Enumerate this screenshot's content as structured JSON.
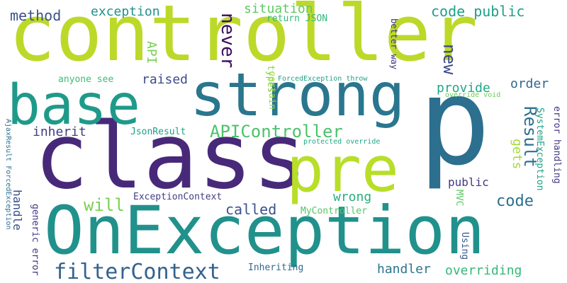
{
  "words": [
    {
      "text": "controller",
      "color": "#bcd92a"
    },
    {
      "text": "class",
      "color": "#482979"
    },
    {
      "text": "OnException",
      "color": "#21918c"
    },
    {
      "text": "p",
      "color": "#2c6f8e"
    },
    {
      "text": "strong",
      "color": "#2a768e"
    },
    {
      "text": "pre",
      "color": "#b8de29"
    },
    {
      "text": "base",
      "color": "#1f9a8a"
    },
    {
      "text": "filterContext",
      "color": "#33628d"
    },
    {
      "text": "APIController",
      "color": "#4cc26c"
    },
    {
      "text": "Result",
      "color": "#2c728e"
    },
    {
      "text": "code public",
      "color": "#1fa088"
    },
    {
      "text": "method",
      "color": "#3b518b"
    },
    {
      "text": "exception",
      "color": "#21918c"
    },
    {
      "text": "situation",
      "color": "#5ec962"
    },
    {
      "text": "return JSON",
      "color": "#35b779"
    },
    {
      "text": "never",
      "color": "#3a0c5f"
    },
    {
      "text": "new",
      "color": "#3e4989"
    },
    {
      "text": "API",
      "color": "#7ad151"
    },
    {
      "text": "raised",
      "color": "#3e4c8a"
    },
    {
      "text": "provide",
      "color": "#22a884"
    },
    {
      "text": "order",
      "color": "#31688e"
    },
    {
      "text": "gets",
      "color": "#a5db36"
    },
    {
      "text": "will",
      "color": "#7ad151"
    },
    {
      "text": "called",
      "color": "#3b528b"
    },
    {
      "text": "code",
      "color": "#2d708e"
    },
    {
      "text": "handler",
      "color": "#2b758e"
    },
    {
      "text": "overriding",
      "color": "#35b779"
    },
    {
      "text": "wrong",
      "color": "#29af7f"
    },
    {
      "text": "public",
      "color": "#443983"
    },
    {
      "text": "inherit",
      "color": "#433e85"
    },
    {
      "text": "handle",
      "color": "#3b518b"
    },
    {
      "text": "JsonResult",
      "color": "#1fa188"
    },
    {
      "text": "ExceptionContext",
      "color": "#433e85"
    },
    {
      "text": "MyController",
      "color": "#54c568"
    },
    {
      "text": "Inheriting",
      "color": "#31688e"
    },
    {
      "text": "anyone see",
      "color": "#3dbc74"
    },
    {
      "text": "types",
      "color": "#86d549"
    },
    {
      "text": "certain",
      "color": "#a0da39"
    },
    {
      "text": "better way",
      "color": "#46337e"
    },
    {
      "text": "ForcedException throw",
      "color": "#20a386"
    },
    {
      "text": "override void",
      "color": "#6ccd5a"
    },
    {
      "text": "protected override",
      "color": "#22a884"
    },
    {
      "text": "SystemException",
      "color": "#1fa187"
    },
    {
      "text": "error handling",
      "color": "#443983"
    },
    {
      "text": "MVC",
      "color": "#5ec962"
    },
    {
      "text": "Using",
      "color": "#38598c"
    },
    {
      "text": "generic error",
      "color": "#463480"
    },
    {
      "text": "AjaxResult ForcedException",
      "color": "#2e6e8e"
    }
  ]
}
